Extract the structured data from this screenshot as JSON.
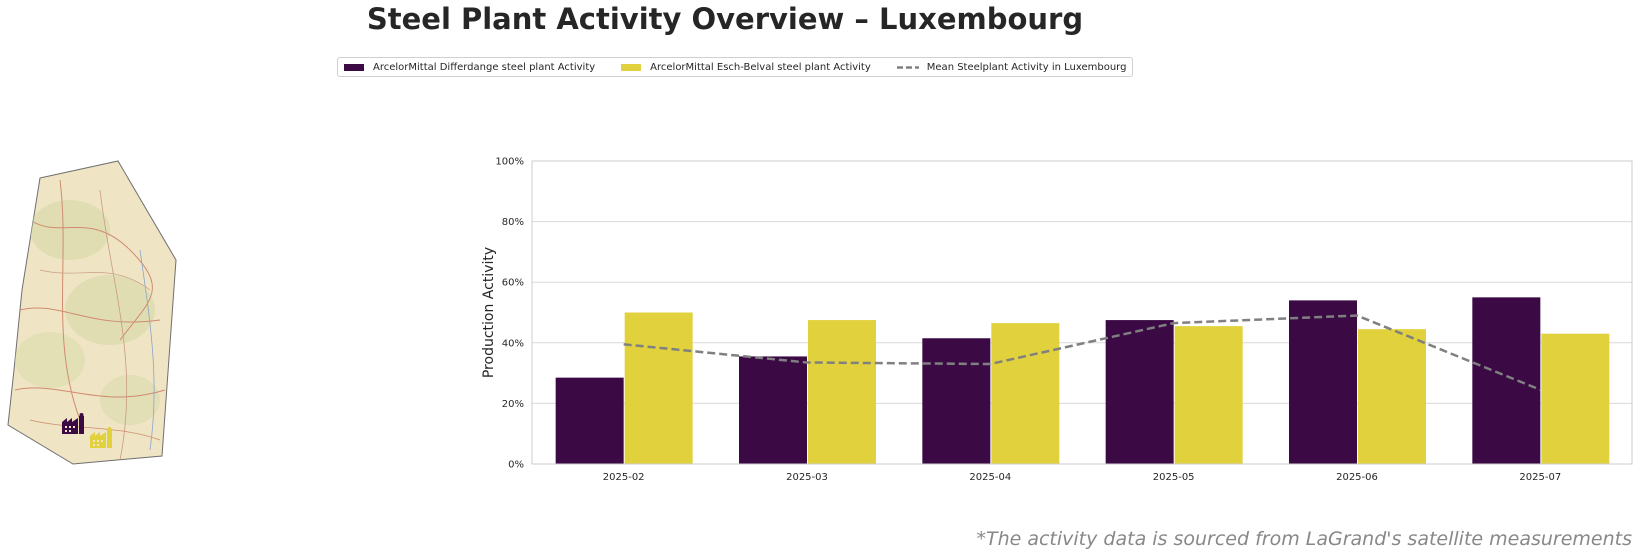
{
  "title": "Steel Plant Activity Overview – Luxembourg",
  "footnote": "*The activity data is sourced from LaGrand's satellite measurements",
  "colors": {
    "differdange": "#3b0a45",
    "esch_belval": "#e1d13c",
    "mean": "#808080",
    "grid": "#d9d9d9"
  },
  "icons": {
    "plant_1": "factory-icon",
    "plant_2": "factory-icon"
  },
  "chart_data": {
    "type": "bar",
    "categories": [
      "2025-02",
      "2025-03",
      "2025-04",
      "2025-05",
      "2025-06",
      "2025-07"
    ],
    "series": [
      {
        "name": "ArcelorMittal Differdange steel plant Activity",
        "type": "bar",
        "values": [
          28.5,
          35.5,
          41.5,
          47.5,
          54.0,
          55.0
        ]
      },
      {
        "name": "ArcelorMittal Esch-Belval steel plant Activity",
        "type": "bar",
        "values": [
          50.0,
          47.5,
          46.5,
          45.5,
          44.5,
          43.0
        ]
      },
      {
        "name": "Mean Steelplant Activity in Luxembourg",
        "type": "line",
        "style": "dashed",
        "values": [
          39.5,
          33.5,
          33.0,
          46.5,
          49.0,
          24.5
        ]
      }
    ],
    "ylabel": "Production Activity",
    "xlabel": "",
    "ylim": [
      0,
      100
    ],
    "yticks": [
      "0%",
      "20%",
      "40%",
      "60%",
      "80%",
      "100%"
    ],
    "grid": "horizontal",
    "legend": "top"
  }
}
